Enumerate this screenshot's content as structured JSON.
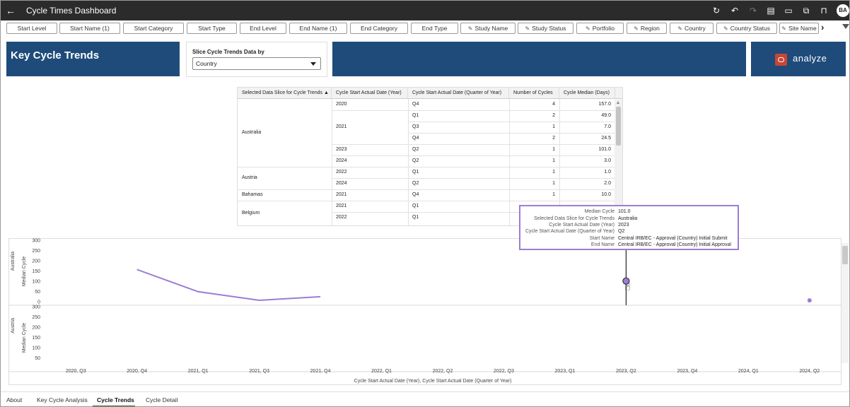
{
  "header": {
    "title": "Cycle Times Dashboard",
    "avatar_initials": "BA",
    "icons": [
      "back-arrow-icon",
      "refresh-icon",
      "undo-icon",
      "redo-icon",
      "data-icon",
      "comment-icon",
      "present-icon",
      "bookmark-icon"
    ]
  },
  "filters": {
    "items": [
      {
        "label": "Start Level",
        "pinned": false
      },
      {
        "label": "Start Name (1)",
        "pinned": false
      },
      {
        "label": "Start Category",
        "pinned": false
      },
      {
        "label": "Start Type",
        "pinned": false
      },
      {
        "label": "End Level",
        "pinned": false
      },
      {
        "label": "End Name (1)",
        "pinned": false
      },
      {
        "label": "End Category",
        "pinned": false
      },
      {
        "label": "End Type",
        "pinned": false
      },
      {
        "label": "Study Name",
        "pinned": true
      },
      {
        "label": "Study Status",
        "pinned": true
      },
      {
        "label": "Portfolio",
        "pinned": true
      },
      {
        "label": "Region",
        "pinned": true
      },
      {
        "label": "Country",
        "pinned": true
      },
      {
        "label": "Country Status",
        "pinned": true
      },
      {
        "label": "Site Name",
        "pinned": true
      }
    ],
    "next_glyph": "›"
  },
  "tiles": {
    "title": "Key Cycle Trends",
    "slice_label": "Slice Cycle Trends Data by",
    "slice_value": "Country",
    "analyze_text": "analyze"
  },
  "table": {
    "headers": [
      "Selected Data Slice for Cycle Trends ▲",
      "Cycle Start Actual Date (Year)",
      "Cycle Start Actual Date (Quarter of Year)",
      "Number of Cycles",
      "Cycle Median (Days)"
    ],
    "groups": [
      {
        "slice": "Australia",
        "years": [
          {
            "year": "2020",
            "rows": [
              {
                "q": "Q4",
                "n": "4",
                "m": "157.0"
              }
            ]
          },
          {
            "year": "2021",
            "rows": [
              {
                "q": "Q1",
                "n": "2",
                "m": "49.0"
              },
              {
                "q": "Q3",
                "n": "1",
                "m": "7.0"
              },
              {
                "q": "Q4",
                "n": "2",
                "m": "24.5"
              }
            ]
          },
          {
            "year": "2023",
            "rows": [
              {
                "q": "Q2",
                "n": "1",
                "m": "101.0"
              }
            ]
          },
          {
            "year": "2024",
            "rows": [
              {
                "q": "Q2",
                "n": "1",
                "m": "3.0"
              }
            ]
          }
        ]
      },
      {
        "slice": "Austria",
        "years": [
          {
            "year": "2022",
            "rows": [
              {
                "q": "Q1",
                "n": "1",
                "m": "1.0"
              }
            ]
          },
          {
            "year": "2024",
            "rows": [
              {
                "q": "Q2",
                "n": "1",
                "m": "2.0"
              }
            ]
          }
        ]
      },
      {
        "slice": "Bahamas",
        "years": [
          {
            "year": "2021",
            "rows": [
              {
                "q": "Q4",
                "n": "1",
                "m": "10.0"
              }
            ]
          }
        ]
      },
      {
        "slice": "Belgium",
        "years": [
          {
            "year": "2021",
            "rows": [
              {
                "q": "Q1",
                "n": "",
                "m": ""
              }
            ]
          },
          {
            "year": "2022",
            "rows": [
              {
                "q": "Q1",
                "n": "",
                "m": ""
              }
            ]
          }
        ]
      }
    ]
  },
  "tooltip": {
    "rows": [
      {
        "k": "Median Cycle",
        "v": "101.0"
      },
      {
        "k": "Selected Data Slice for Cycle Trends",
        "v": "Australia"
      },
      {
        "k": "Cycle Start Actual Date (Year)",
        "v": "2023"
      },
      {
        "k": "Cycle Start Actual Date (Quarter of Year)",
        "v": "Q2"
      },
      {
        "k": "Start Name",
        "v": "Central IRB/EC - Approval (Country) Initial Submit"
      },
      {
        "k": "End Name",
        "v": "Central IRB/EC - Approval (Country) Initial Approval"
      }
    ]
  },
  "chart_data": {
    "type": "line",
    "x_label": "Cycle Start Actual Date (Year), Cycle Start Actual Date (Quarter of Year)",
    "y_label": "Median Cycle",
    "categories": [
      "2020, Q3",
      "2020, Q4",
      "2021, Q1",
      "2021, Q3",
      "2021, Q4",
      "2022, Q1",
      "2022, Q2",
      "2022, Q3",
      "2023, Q1",
      "2023, Q2",
      "2023, Q4",
      "2024, Q1",
      "2024, Q2"
    ],
    "color": "#9b7dd4",
    "panels": [
      {
        "name": "Australia",
        "ylim": [
          0,
          300
        ],
        "y_ticks": [
          0,
          50,
          100,
          150,
          200,
          250,
          300
        ],
        "line": [
          {
            "x": "2020, Q4",
            "y": 157.0
          },
          {
            "x": "2021, Q1",
            "y": 49.0
          },
          {
            "x": "2021, Q3",
            "y": 7.0
          },
          {
            "x": "2021, Q4",
            "y": 24.5
          }
        ],
        "points": [
          {
            "x": "2023, Q2",
            "y": 101.0,
            "highlight": true
          },
          {
            "x": "2024, Q2",
            "y": 3.0
          }
        ]
      },
      {
        "name": "Austria",
        "ylim": [
          0,
          300
        ],
        "y_ticks": [
          50,
          100,
          150,
          200,
          250,
          300
        ],
        "line": [],
        "points": []
      }
    ]
  },
  "tabs": {
    "items": [
      "About",
      "Key Cycle Analysis",
      "Cycle Trends",
      "Cycle Detail"
    ],
    "active": "Cycle Trends"
  }
}
